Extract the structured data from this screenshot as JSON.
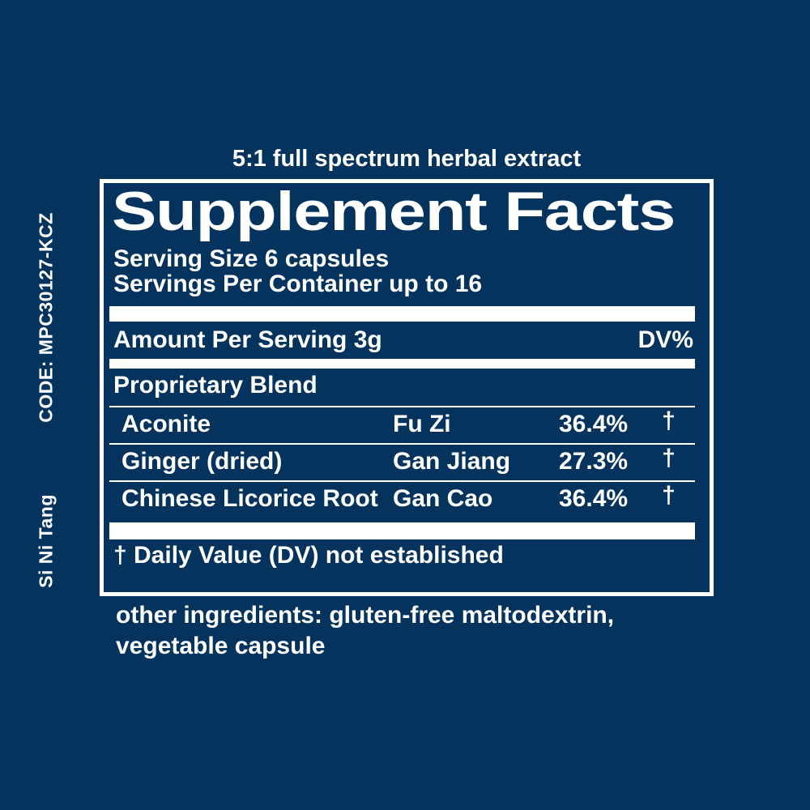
{
  "colors": {
    "background": "#04335e",
    "foreground": "#ffffff"
  },
  "side_labels": {
    "code": "CODE: MPC30127-KCZ",
    "product": "Si Ni Tang"
  },
  "header": {
    "tagline": "5:1 full spectrum herbal extract"
  },
  "panel": {
    "title": "Supplement Facts",
    "serving_size": "Serving Size 6 capsules",
    "servings_per_container": "Servings Per Container up to 16",
    "amount_per_serving": "Amount Per Serving 3g",
    "dv_header": "DV%",
    "blend_title": "Proprietary Blend",
    "ingredients": [
      {
        "name": "Aconite",
        "pinyin": "Fu Zi",
        "percent": "36.4%",
        "dv": "†"
      },
      {
        "name": "Ginger (dried)",
        "pinyin": "Gan Jiang",
        "percent": "27.3%",
        "dv": "†"
      },
      {
        "name": "Chinese Licorice Root",
        "pinyin": "Gan Cao",
        "percent": "36.4%",
        "dv": "†"
      }
    ],
    "footnote": "† Daily Value (DV) not established"
  },
  "other_ingredients": "other ingredients: gluten-free maltodextrin, vegetable capsule"
}
